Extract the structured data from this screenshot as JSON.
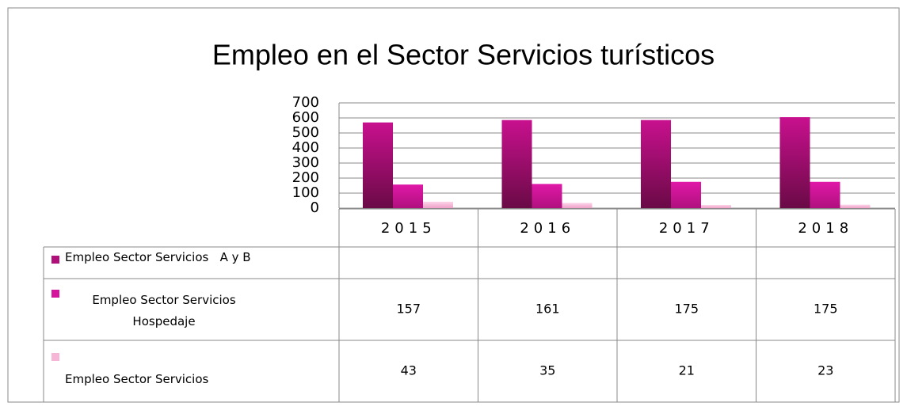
{
  "chart_data": {
    "type": "bar",
    "title": "Empleo en el Sector Servicios turísticos",
    "categories": [
      "2015",
      "2016",
      "2017",
      "2018"
    ],
    "series": [
      {
        "name": "Empleo Sector Servicios   A y B",
        "color": "#b0107a",
        "values": [
          570,
          586,
          586,
          605
        ]
      },
      {
        "name": "Empleo Sector Servicios Hospedaje",
        "color": "#d4149c",
        "values": [
          157,
          161,
          175,
          175
        ]
      },
      {
        "name": "Empleo Sector Servicios",
        "color": "#f6b6d6",
        "values": [
          43,
          35,
          21,
          23
        ]
      }
    ],
    "ylim": [
      0,
      700
    ],
    "yticks": [
      0,
      100,
      200,
      300,
      400,
      500,
      600,
      700
    ],
    "grid": true
  }
}
